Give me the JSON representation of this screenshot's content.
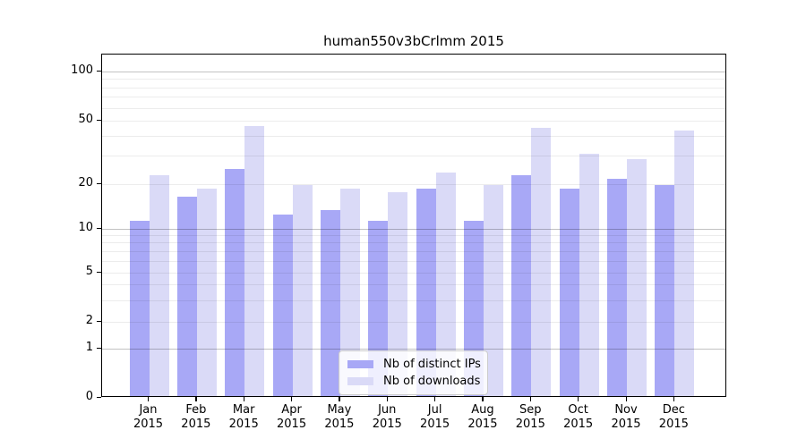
{
  "title": "human550v3bCrlmm 2015",
  "legend": {
    "items": [
      {
        "label": "Nb of distinct IPs",
        "color": "#a8a8f6"
      },
      {
        "label": "Nb of downloads",
        "color": "#dadaf7"
      }
    ]
  },
  "chart_data": {
    "type": "bar",
    "title": "human550v3bCrlmm 2015",
    "categories": [
      "Jan",
      "Feb",
      "Mar",
      "Apr",
      "May",
      "Jun",
      "Jul",
      "Aug",
      "Sep",
      "Oct",
      "Nov",
      "Dec"
    ],
    "category_year": "2015",
    "series": [
      {
        "name": "Nb of distinct IPs",
        "color": "#a8a8f6",
        "values": [
          11,
          16,
          24,
          12,
          13,
          11,
          18,
          11,
          22,
          18,
          21,
          19
        ]
      },
      {
        "name": "Nb of downloads",
        "color": "#dadaf7",
        "values": [
          22,
          18,
          45,
          19,
          18,
          17,
          23,
          19,
          44,
          30,
          28,
          42
        ]
      }
    ],
    "xlabel": "",
    "ylabel": "",
    "yscale": "symlog",
    "ylim": [
      0,
      130
    ],
    "y_ticks": [
      0,
      1,
      2,
      5,
      10,
      20,
      50,
      100
    ],
    "grid": {
      "major": [
        1,
        10,
        100
      ],
      "minor": [
        2,
        3,
        4,
        5,
        6,
        7,
        8,
        9,
        20,
        30,
        40,
        50,
        60,
        70,
        80,
        90
      ]
    },
    "legend_position": "lower center inside",
    "scale_anchors": [
      [
        0,
        384
      ],
      [
        1,
        329
      ],
      [
        2,
        299
      ],
      [
        5,
        244
      ],
      [
        10,
        194.5
      ],
      [
        20,
        144.5
      ],
      [
        50,
        74
      ],
      [
        100,
        19
      ]
    ]
  }
}
